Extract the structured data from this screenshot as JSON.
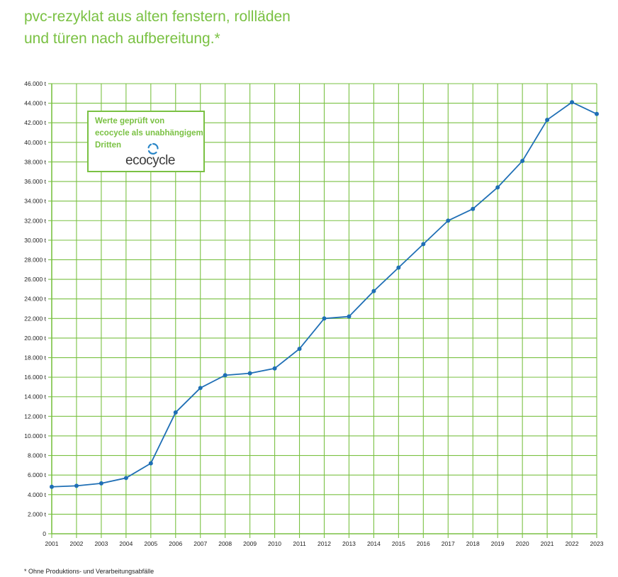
{
  "title": {
    "line1": "pvc-rezyklat aus alten fenstern, rollläden",
    "line2": "und türen nach aufbereitung.*"
  },
  "certificate": {
    "line1": "Werte geprüft von",
    "line2": "ecocycle als unabhängigem",
    "line3": "Dritten",
    "logo_text": "ecocycle",
    "icon": "ecocycle-recycle-icon"
  },
  "footnote": "* Ohne Produktions- und Verarbeitungsabfälle",
  "colors": {
    "accent_green": "#7ac143",
    "line_blue": "#1f6fb5"
  },
  "chart_data": {
    "type": "line",
    "title": "pvc-rezyklat aus alten fenstern, rollläden und türen nach aufbereitung.*",
    "xlabel": "",
    "ylabel": "",
    "categories": [
      "2001",
      "2002",
      "2003",
      "2004",
      "2005",
      "2006",
      "2007",
      "2008",
      "2009",
      "2010",
      "2011",
      "2012",
      "2013",
      "2014",
      "2015",
      "2016",
      "2017",
      "2018",
      "2019",
      "2020",
      "2021",
      "2022",
      "2023"
    ],
    "values": [
      4800,
      4900,
      5150,
      5700,
      7200,
      12400,
      14900,
      16200,
      16400,
      16900,
      18900,
      22000,
      22200,
      24800,
      27200,
      29600,
      32000,
      33200,
      35400,
      38100,
      42300,
      44100,
      42900
    ],
    "ylim": [
      0,
      46000
    ],
    "yticks": [
      0,
      2000,
      4000,
      6000,
      8000,
      10000,
      12000,
      14000,
      16000,
      18000,
      20000,
      22000,
      24000,
      26000,
      28000,
      30000,
      32000,
      34000,
      36000,
      38000,
      40000,
      42000,
      44000,
      46000
    ],
    "ytick_labels": [
      "0",
      "2.000 t",
      "4.000 t",
      "6.000 t",
      "8.000 t",
      "10.000 t",
      "12.000 t",
      "14.000 t",
      "16.000 t",
      "18.000 t",
      "20.000 t",
      "22.000 t",
      "24.000 t",
      "26.000 t",
      "28.000 t",
      "30.000 t",
      "32.000 t",
      "34.000 t",
      "36.000 t",
      "38.000 t",
      "40.000 t",
      "42.000 t",
      "44.000 t",
      "46.000 t"
    ],
    "grid": true,
    "legend": "none"
  }
}
